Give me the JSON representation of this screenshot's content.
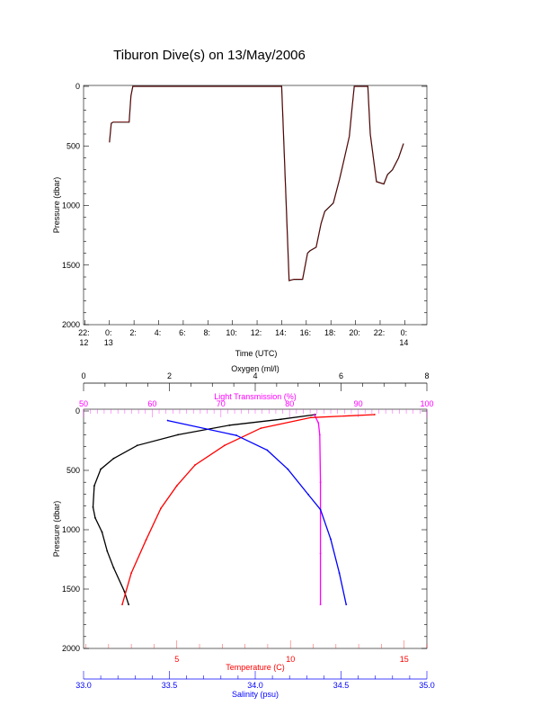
{
  "chart_data": [
    {
      "type": "line",
      "title": "Tiburon Dive(s) on 13/May/2006",
      "xlabel": "Time (UTC)",
      "ylabel": "Pressure (dbar)",
      "xlim_hours_from_0000_13May": [
        -2.1,
        25.8
      ],
      "ylim": [
        2000,
        0
      ],
      "x_ticks": [
        {
          "h": -2,
          "l1": "22:",
          "l2": "12"
        },
        {
          "h": 0,
          "l1": "0:",
          "l2": "13"
        },
        {
          "h": 2,
          "l1": "2:",
          "l2": ""
        },
        {
          "h": 4,
          "l1": "4:",
          "l2": ""
        },
        {
          "h": 6,
          "l1": "6:",
          "l2": ""
        },
        {
          "h": 8,
          "l1": "8:",
          "l2": ""
        },
        {
          "h": 10,
          "l1": "10:",
          "l2": ""
        },
        {
          "h": 12,
          "l1": "12:",
          "l2": ""
        },
        {
          "h": 14,
          "l1": "14:",
          "l2": ""
        },
        {
          "h": 16,
          "l1": "16:",
          "l2": ""
        },
        {
          "h": 18,
          "l1": "18:",
          "l2": ""
        },
        {
          "h": 20,
          "l1": "20:",
          "l2": ""
        },
        {
          "h": 22,
          "l1": "22:",
          "l2": ""
        },
        {
          "h": 24,
          "l1": "0:",
          "l2": "14"
        }
      ],
      "y_ticks": [
        "0",
        "500",
        "1000",
        "1500",
        "2000"
      ],
      "series": [
        {
          "name": "dive track",
          "color": "#000000",
          "x": [
            0.0,
            0.15,
            0.3,
            1.6,
            1.75,
            1.9,
            2.5,
            6,
            10,
            14.0,
            14.3,
            14.6,
            15.0,
            15.7,
            16.1,
            16.3,
            16.8,
            17.2,
            17.5,
            18.2,
            18.7,
            19.1,
            19.5,
            19.7,
            19.9,
            20.6,
            21.0,
            21.2,
            21.7,
            22.3,
            22.6,
            23.0,
            23.5,
            23.9
          ],
          "y": [
            470,
            310,
            300,
            300,
            80,
            0,
            0,
            0,
            0,
            0,
            800,
            1630,
            1620,
            1620,
            1400,
            1380,
            1350,
            1150,
            1050,
            980,
            780,
            600,
            420,
            200,
            0,
            0,
            0,
            400,
            800,
            820,
            740,
            700,
            600,
            480
          ]
        }
      ]
    },
    {
      "type": "line",
      "ylabel": "Pressure (dbar)",
      "ylim": [
        2000,
        0
      ],
      "y_ticks": [
        "0",
        "500",
        "1000",
        "1500",
        "2000"
      ],
      "axes": [
        {
          "key": "oxygen",
          "label": "Oxygen (ml/l)",
          "color": "#000000",
          "range": [
            0,
            8
          ],
          "ticks": [
            "0",
            "2",
            "4",
            "6",
            "8"
          ],
          "minor": 0.5,
          "position": "top-outer"
        },
        {
          "key": "light",
          "label": "Light Transmission (%)",
          "color": "#ff00ff",
          "range": [
            50,
            100
          ],
          "ticks": [
            "50",
            "60",
            "70",
            "80",
            "90",
            "100"
          ],
          "minor": 1,
          "position": "top"
        },
        {
          "key": "temp",
          "label": "Temperature (C)",
          "color": "#ff0000",
          "range": [
            0.9,
            16.0
          ],
          "ticks": [
            "5",
            "10",
            "15"
          ],
          "minor": 1,
          "position": "bottom"
        },
        {
          "key": "sal",
          "label": "Salinity (psu)",
          "color": "#0000ff",
          "range": [
            33.0,
            35.0
          ],
          "ticks": [
            "33.0",
            "33.5",
            "34.0",
            "34.5",
            "35.0"
          ],
          "minor": 0.1,
          "position": "bottom-outer"
        }
      ],
      "series": [
        {
          "name": "Oxygen",
          "axis": "oxygen",
          "color": "#000000",
          "x": [
            5.4,
            4.6,
            3.4,
            2.2,
            1.25,
            0.7,
            0.4,
            0.25,
            0.22,
            0.27,
            0.43,
            0.55,
            0.7,
            0.95,
            1.05
          ],
          "p": [
            30,
            70,
            120,
            200,
            290,
            400,
            490,
            630,
            810,
            900,
            1020,
            1180,
            1320,
            1520,
            1630
          ]
        },
        {
          "name": "Light Transmission",
          "axis": "light",
          "color": "#ff00ff",
          "x": [
            83.6,
            84.2,
            84.4,
            84.5,
            84.5,
            84.5
          ],
          "p": [
            30,
            100,
            200,
            600,
            1200,
            1630
          ]
        },
        {
          "name": "Temperature",
          "axis": "temp",
          "color": "#ff0000",
          "x": [
            13.7,
            10.9,
            8.7,
            7.1,
            5.8,
            5.0,
            4.3,
            3.65,
            3.0,
            2.6
          ],
          "p": [
            30,
            55,
            145,
            290,
            455,
            630,
            820,
            1085,
            1365,
            1630
          ]
        },
        {
          "name": "Salinity",
          "axis": "sal",
          "color": "#0000ff",
          "x": [
            33.49,
            33.89,
            34.07,
            34.19,
            34.31,
            34.38,
            34.44,
            34.49,
            34.53
          ],
          "p": [
            80,
            205,
            330,
            490,
            705,
            830,
            1080,
            1365,
            1630
          ]
        }
      ]
    }
  ]
}
